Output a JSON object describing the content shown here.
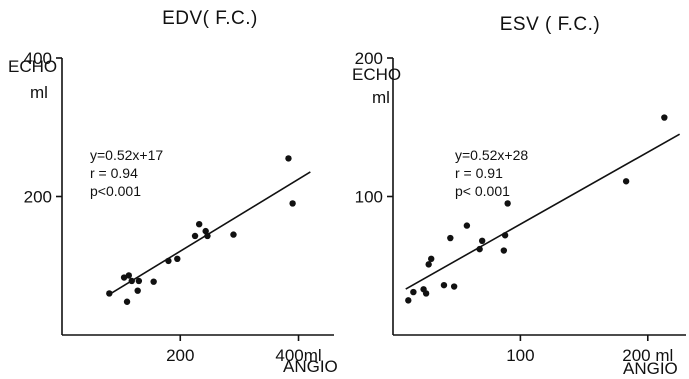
{
  "chart_data": [
    {
      "type": "scatter",
      "title": "EDV( F.C.)",
      "ylabel": "ECHO",
      "yunit": "ml",
      "xlabel": "ANGIO",
      "xlim": [
        0,
        460
      ],
      "ylim": [
        0,
        400
      ],
      "x_ticks": [
        {
          "value": 200,
          "label": "200"
        },
        {
          "value": 400,
          "label": "400ml"
        }
      ],
      "y_ticks": [
        {
          "value": 200,
          "label": "200"
        },
        {
          "value": 400,
          "label": "400"
        }
      ],
      "annotation": [
        "y=0.52x+17",
        "r = 0.94",
        "p<0.001"
      ],
      "fit": {
        "slope": 0.52,
        "intercept": 17,
        "x_range": [
          80,
          420
        ]
      },
      "points": [
        {
          "x": 80,
          "y": 60
        },
        {
          "x": 105,
          "y": 83
        },
        {
          "x": 110,
          "y": 48
        },
        {
          "x": 113,
          "y": 86
        },
        {
          "x": 118,
          "y": 78
        },
        {
          "x": 128,
          "y": 64
        },
        {
          "x": 130,
          "y": 78
        },
        {
          "x": 155,
          "y": 77
        },
        {
          "x": 180,
          "y": 107
        },
        {
          "x": 195,
          "y": 110
        },
        {
          "x": 225,
          "y": 143
        },
        {
          "x": 232,
          "y": 160
        },
        {
          "x": 243,
          "y": 150
        },
        {
          "x": 246,
          "y": 143
        },
        {
          "x": 290,
          "y": 145
        },
        {
          "x": 383,
          "y": 255
        },
        {
          "x": 390,
          "y": 190
        }
      ]
    },
    {
      "type": "scatter",
      "title": "ESV ( F.C.)",
      "ylabel": "ECHO",
      "yunit": "ml",
      "xlabel": "ANGIO",
      "xlim": [
        0,
        230
      ],
      "ylim": [
        0,
        200
      ],
      "x_ticks": [
        {
          "value": 100,
          "label": "100"
        },
        {
          "value": 200,
          "label": "200 ml"
        }
      ],
      "y_ticks": [
        {
          "value": 100,
          "label": "100"
        },
        {
          "value": 200,
          "label": "200"
        }
      ],
      "annotation": [
        "y=0.52x+28",
        "r = 0.91",
        "p< 0.001"
      ],
      "fit": {
        "slope": 0.52,
        "intercept": 28,
        "x_range": [
          10,
          225
        ]
      },
      "points": [
        {
          "x": 12,
          "y": 25
        },
        {
          "x": 16,
          "y": 31
        },
        {
          "x": 24,
          "y": 33
        },
        {
          "x": 26,
          "y": 30
        },
        {
          "x": 28,
          "y": 51
        },
        {
          "x": 30,
          "y": 55
        },
        {
          "x": 40,
          "y": 36
        },
        {
          "x": 45,
          "y": 70
        },
        {
          "x": 48,
          "y": 35
        },
        {
          "x": 58,
          "y": 79
        },
        {
          "x": 68,
          "y": 62
        },
        {
          "x": 70,
          "y": 68
        },
        {
          "x": 87,
          "y": 61
        },
        {
          "x": 88,
          "y": 72
        },
        {
          "x": 90,
          "y": 95
        },
        {
          "x": 183,
          "y": 111
        },
        {
          "x": 213,
          "y": 157
        }
      ]
    }
  ]
}
